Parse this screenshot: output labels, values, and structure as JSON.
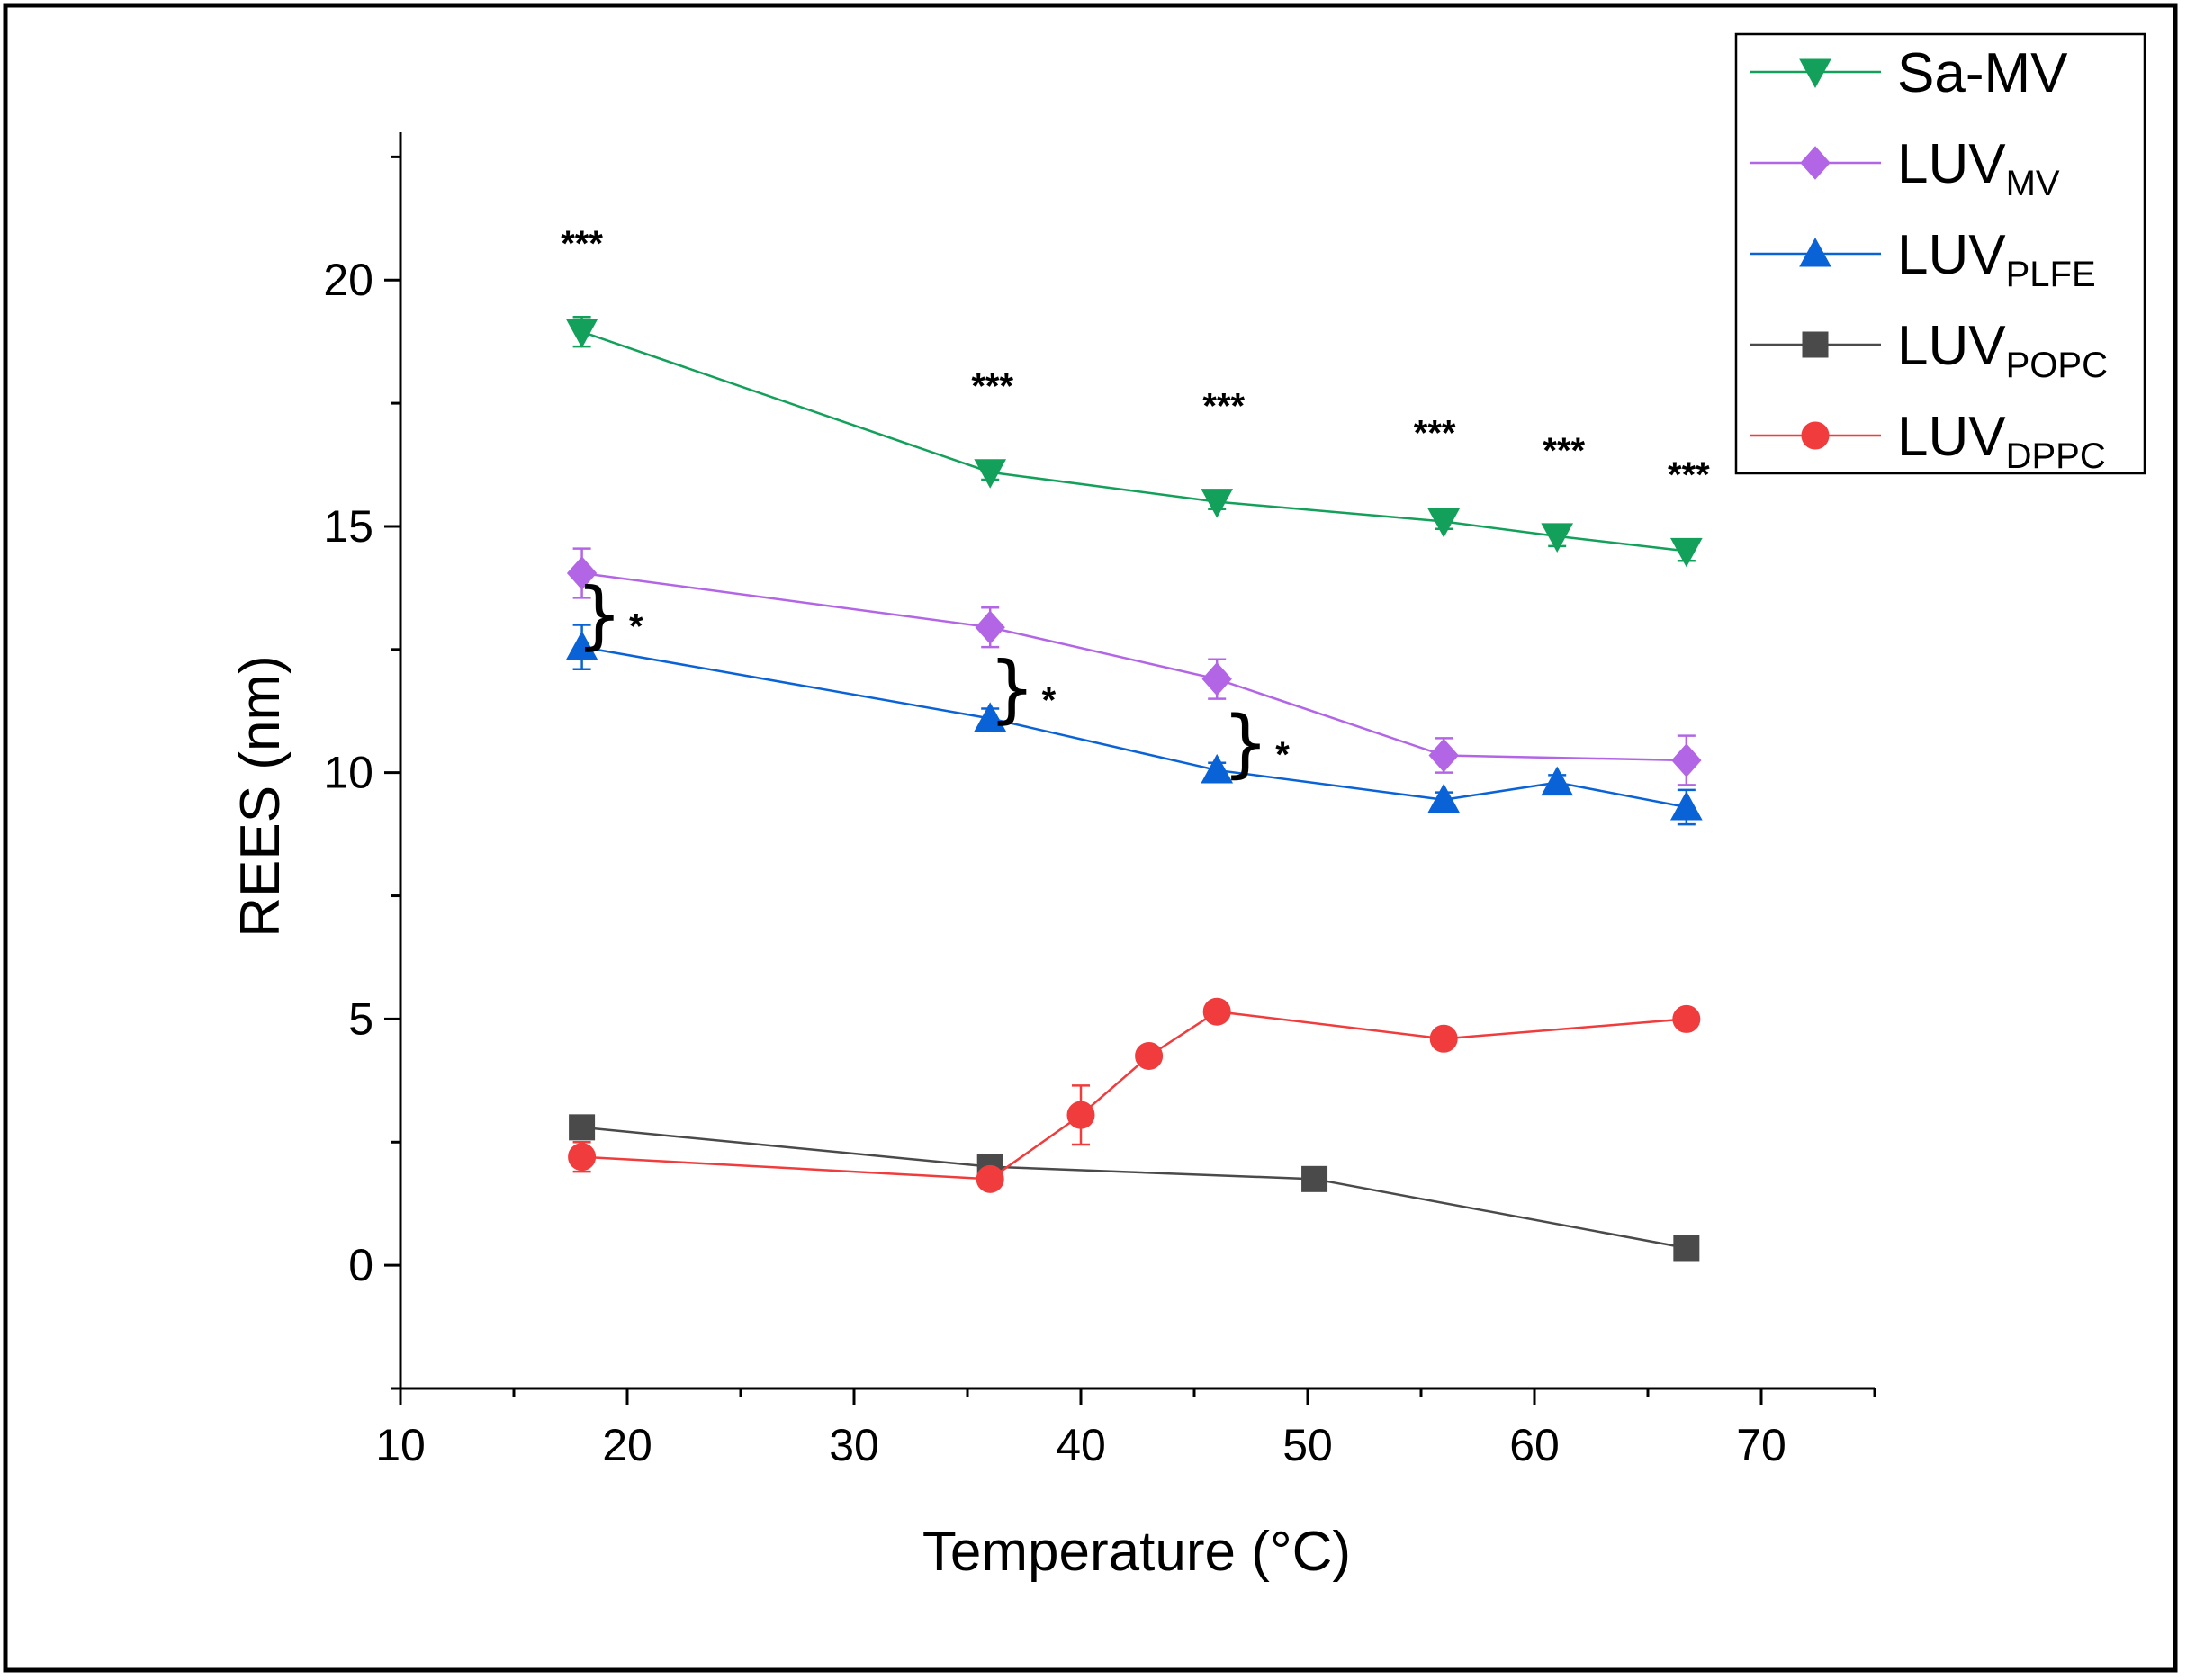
{
  "chart_data": {
    "type": "line",
    "title": "",
    "xlabel": "Temperature (°C)",
    "ylabel": "REES (nm)",
    "xlim": [
      10,
      75
    ],
    "ylim": [
      -2.5,
      23
    ],
    "xticks": [
      10,
      20,
      30,
      40,
      50,
      60,
      70
    ],
    "yticks": [
      0,
      5,
      10,
      15,
      20
    ],
    "grid": false,
    "legend_position": "top-right",
    "series": [
      {
        "name": "Sa-MV",
        "label_main": "Sa-MV",
        "label_sub": "",
        "color": "#13A05A",
        "marker": "triangle-down",
        "x": [
          18,
          36,
          46,
          56,
          61,
          66.7
        ],
        "y": [
          18.95,
          16.1,
          15.5,
          15.1,
          14.8,
          14.5
        ],
        "err": [
          0.3,
          0.15,
          0.15,
          0.15,
          0.2,
          0.2
        ]
      },
      {
        "name": "LUVMV",
        "label_main": "LUV",
        "label_sub": "MV",
        "color": "#B266E6",
        "marker": "diamond",
        "x": [
          18,
          36,
          46,
          56,
          66.7
        ],
        "y": [
          14.05,
          12.95,
          11.9,
          10.35,
          10.25
        ],
        "err": [
          0.5,
          0.4,
          0.4,
          0.35,
          0.5
        ]
      },
      {
        "name": "LUVPLFE",
        "label_main": "LUV",
        "label_sub": "PLFE",
        "color": "#0A63D6",
        "marker": "triangle-up",
        "x": [
          18,
          36,
          46,
          56,
          61,
          66.7
        ],
        "y": [
          12.55,
          11.1,
          10.05,
          9.45,
          9.8,
          9.3
        ],
        "err": [
          0.45,
          0.2,
          0.15,
          0.15,
          0.15,
          0.35
        ]
      },
      {
        "name": "LUVPOPC",
        "label_main": "LUV",
        "label_sub": "POPC",
        "color": "#4A4A4A",
        "marker": "square",
        "x": [
          18,
          36,
          50.3,
          66.7
        ],
        "y": [
          2.8,
          2.0,
          1.75,
          0.35
        ],
        "err": [
          0.1,
          0.1,
          0.1,
          0.1
        ]
      },
      {
        "name": "LUVDPPC",
        "label_main": "LUV",
        "label_sub": "DPPC",
        "color": "#F03C3C",
        "marker": "circle",
        "x": [
          18,
          36,
          40,
          43,
          46,
          56,
          66.7
        ],
        "y": [
          2.2,
          1.75,
          3.05,
          4.25,
          5.15,
          4.6,
          5.0
        ],
        "err": [
          0.3,
          0.15,
          0.6,
          0.15,
          0.15,
          0.15,
          0.15
        ]
      }
    ],
    "annotations": [
      {
        "text": "***",
        "x": 18,
        "y": 20.5
      },
      {
        "text": "***",
        "x": 36.1,
        "y": 17.6
      },
      {
        "text": "***",
        "x": 46.3,
        "y": 17.2
      },
      {
        "text": "***",
        "x": 55.6,
        "y": 16.65
      },
      {
        "text": "***",
        "x": 61.3,
        "y": 16.3
      },
      {
        "text": "***",
        "x": 66.8,
        "y": 15.8
      }
    ],
    "brace_annotations": [
      {
        "text": "*",
        "x": 19.0,
        "y": 13.2
      },
      {
        "text": "*",
        "x": 37.2,
        "y": 11.7
      },
      {
        "text": "*",
        "x": 47.5,
        "y": 10.6
      }
    ]
  }
}
